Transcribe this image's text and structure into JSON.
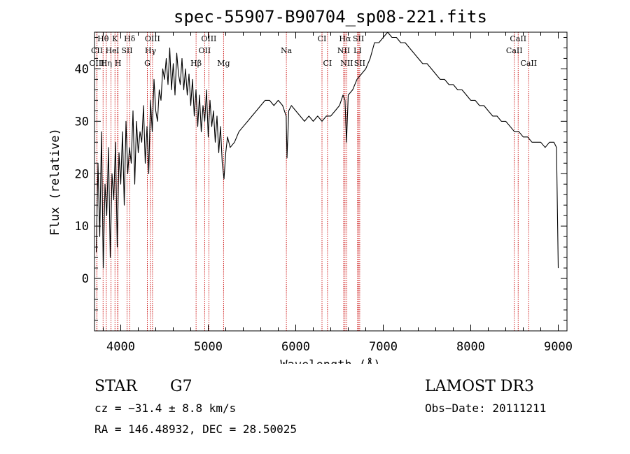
{
  "chart_data": {
    "type": "line",
    "title": "spec-55907-B90704_sp08-221.fits",
    "xlabel": "Wavelength (Å)",
    "ylabel": "Flux (relative)",
    "xlim": [
      3700,
      9100
    ],
    "ylim": [
      -10,
      47
    ],
    "xticks": [
      4000,
      5000,
      6000,
      7000,
      8000,
      9000
    ],
    "yticks": [
      0,
      10,
      20,
      30,
      40
    ],
    "grid": false,
    "series": [
      {
        "x": [
          3720,
          3740,
          3760,
          3780,
          3800,
          3820,
          3840,
          3860,
          3880,
          3900,
          3920,
          3940,
          3960,
          3980,
          4000,
          4020,
          4040,
          4060,
          4080,
          4100,
          4120,
          4140,
          4160,
          4180,
          4200,
          4220,
          4240,
          4260,
          4280,
          4300,
          4320,
          4340,
          4360,
          4380,
          4400,
          4420,
          4440,
          4460,
          4480,
          4500,
          4520,
          4540,
          4560,
          4580,
          4600,
          4620,
          4640,
          4660,
          4680,
          4700,
          4720,
          4740,
          4760,
          4780,
          4800,
          4820,
          4840,
          4860,
          4880,
          4900,
          4920,
          4940,
          4960,
          4980,
          5000,
          5020,
          5040,
          5060,
          5080,
          5100,
          5120,
          5140,
          5160,
          5180,
          5200,
          5220,
          5250,
          5300,
          5350,
          5400,
          5450,
          5500,
          5550,
          5600,
          5650,
          5700,
          5750,
          5800,
          5850,
          5890,
          5900,
          5920,
          5950,
          6000,
          6050,
          6100,
          6150,
          6200,
          6250,
          6300,
          6350,
          6400,
          6450,
          6500,
          6540,
          6563,
          6580,
          6600,
          6650,
          6700,
          6750,
          6800,
          6850,
          6900,
          6950,
          7000,
          7050,
          7100,
          7150,
          7200,
          7250,
          7300,
          7350,
          7400,
          7450,
          7500,
          7550,
          7600,
          7650,
          7700,
          7750,
          7800,
          7850,
          7900,
          7950,
          8000,
          8050,
          8100,
          8150,
          8200,
          8250,
          8300,
          8350,
          8400,
          8450,
          8500,
          8550,
          8600,
          8650,
          8700,
          8750,
          8800,
          8850,
          8900,
          8950,
          8980,
          9000
        ],
        "y": [
          5,
          22,
          8,
          28,
          2,
          18,
          12,
          25,
          4,
          20,
          15,
          26,
          6,
          24,
          18,
          28,
          14,
          30,
          20,
          25,
          22,
          32,
          18,
          30,
          24,
          28,
          26,
          33,
          22,
          29,
          20,
          34,
          28,
          38,
          32,
          30,
          36,
          34,
          40,
          38,
          42,
          37,
          44,
          36,
          41,
          35,
          43,
          39,
          37,
          42,
          36,
          40,
          35,
          39,
          33,
          38,
          31,
          36,
          29,
          35,
          28,
          33,
          30,
          36,
          27,
          34,
          29,
          32,
          26,
          31,
          24,
          29,
          22,
          19,
          24,
          27,
          25,
          26,
          28,
          29,
          30,
          31,
          32,
          33,
          34,
          34,
          33,
          34,
          33,
          31,
          23,
          32,
          33,
          32,
          31,
          30,
          31,
          30,
          31,
          30,
          31,
          31,
          32,
          33,
          35,
          34,
          26,
          35,
          36,
          38,
          39,
          40,
          42,
          45,
          45,
          46,
          47,
          46,
          46,
          45,
          45,
          44,
          43,
          42,
          41,
          41,
          40,
          39,
          38,
          38,
          37,
          37,
          36,
          36,
          35,
          34,
          34,
          33,
          33,
          32,
          31,
          31,
          30,
          30,
          29,
          28,
          28,
          27,
          27,
          26,
          26,
          26,
          25,
          26,
          26,
          25,
          2
        ]
      }
    ],
    "line_labels": [
      {
        "text": "Hθ",
        "x": 3798,
        "row": 1
      },
      {
        "text": "K",
        "x": 3934,
        "row": 1
      },
      {
        "text": "Hδ",
        "x": 4102,
        "row": 1
      },
      {
        "text": "OIII",
        "x": 4363,
        "row": 1
      },
      {
        "text": "OIII",
        "x": 5007,
        "row": 1
      },
      {
        "text": "CI",
        "x": 6300,
        "row": 1
      },
      {
        "text": "Hα",
        "x": 6563,
        "row": 1
      },
      {
        "text": "SII",
        "x": 6717,
        "row": 1
      },
      {
        "text": "CaII",
        "x": 8542,
        "row": 1
      },
      {
        "text": "CII",
        "x": 3728,
        "row": 2
      },
      {
        "text": "He",
        "x": 3889,
        "row": 2
      },
      {
        "text": "I",
        "x": 3965,
        "row": 2
      },
      {
        "text": "SII",
        "x": 4072,
        "row": 2
      },
      {
        "text": "Hγ",
        "x": 4340,
        "row": 2
      },
      {
        "text": "OII",
        "x": 4959,
        "row": 2
      },
      {
        "text": "Na",
        "x": 5893,
        "row": 2
      },
      {
        "text": "NII",
        "x": 6548,
        "row": 2
      },
      {
        "text": "LI",
        "x": 6707,
        "row": 2
      },
      {
        "text": "CaII",
        "x": 8498,
        "row": 2
      },
      {
        "text": "OIII",
        "x": 3727,
        "row": 3
      },
      {
        "text": "Hη",
        "x": 3835,
        "row": 3
      },
      {
        "text": "H",
        "x": 3968,
        "row": 3
      },
      {
        "text": "G",
        "x": 4304,
        "row": 3
      },
      {
        "text": "Hβ",
        "x": 4861,
        "row": 3
      },
      {
        "text": "Mg",
        "x": 5175,
        "row": 3
      },
      {
        "text": "CI",
        "x": 6363,
        "row": 3
      },
      {
        "text": "NII",
        "x": 6583,
        "row": 3
      },
      {
        "text": "SII",
        "x": 6731,
        "row": 3
      },
      {
        "text": "CaII",
        "x": 8662,
        "row": 3
      }
    ],
    "marker_lines": [
      3727,
      3728,
      3798,
      3835,
      3889,
      3934,
      3965,
      3968,
      4072,
      4102,
      4304,
      4340,
      4363,
      4861,
      4959,
      5007,
      5175,
      5893,
      6300,
      6363,
      6548,
      6563,
      6583,
      6707,
      6717,
      6731,
      8498,
      8542,
      8662
    ],
    "colors": {
      "axes": "#000000",
      "spectrum": "#000000",
      "marker_lines": "#c80000"
    }
  },
  "info": {
    "class": "STAR",
    "subclass": "G7",
    "survey": "LAMOST DR3",
    "cz": "cz = −31.4 ± 8.8 km/s",
    "obs_date": "Obs−Date: 20111211",
    "radec": "RA = 146.48932, DEC =  28.50025"
  }
}
